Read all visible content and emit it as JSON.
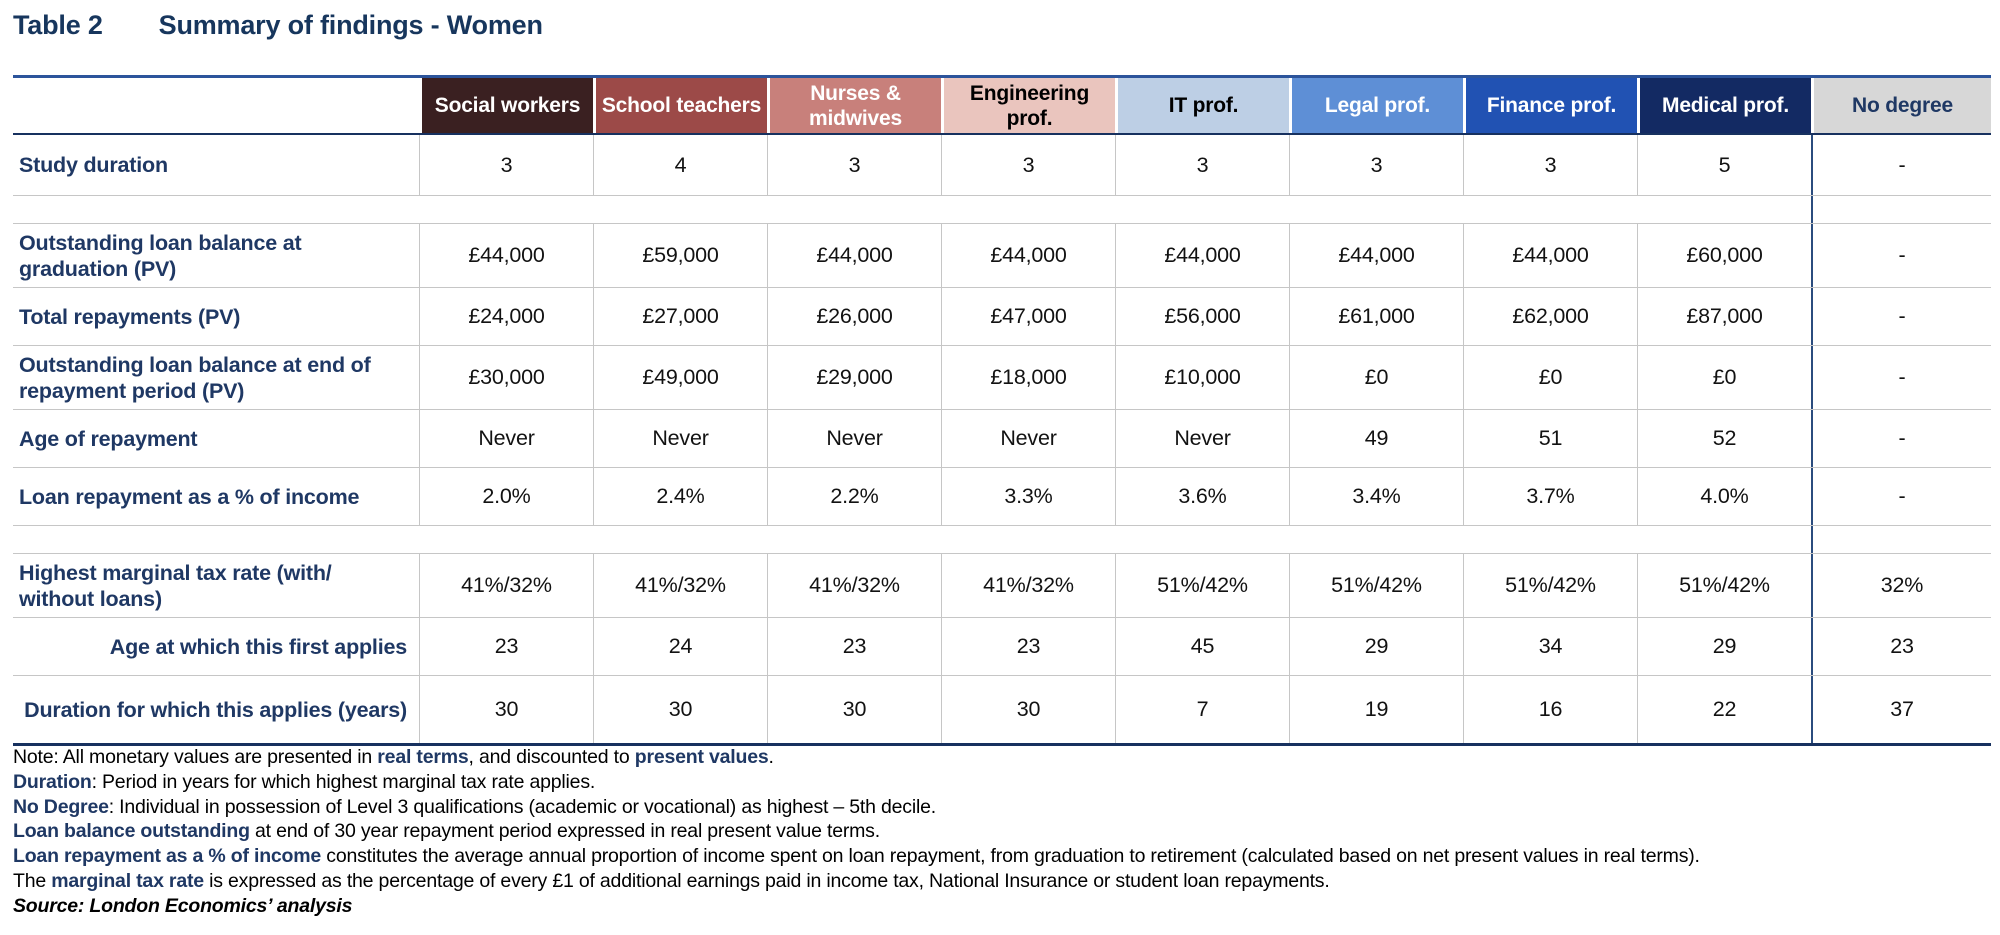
{
  "title": {
    "label": "Table 2",
    "heading": "Summary of findings - Women"
  },
  "colors": {
    "navy_text": "#1F3864",
    "title_navy": "#17365D",
    "top_border": "#2C549B",
    "bottom_border": "#17315F",
    "gridline_gray": "#C6C6C6",
    "nodegree_divider": "#2B4C7E"
  },
  "table": {
    "columns": [
      {
        "label": "Social workers",
        "bg": "#3A2021",
        "fg": "#FFFFFF"
      },
      {
        "label": "School teachers",
        "bg": "#9C4A48",
        "fg": "#FFFFFF"
      },
      {
        "label": "Nurses & midwives",
        "bg": "#C8807B",
        "fg": "#FFFFFF"
      },
      {
        "label": "Engineering prof.",
        "bg": "#EAC5BE",
        "fg": "#000000"
      },
      {
        "label": "IT prof.",
        "bg": "#BDCFE5",
        "fg": "#000000"
      },
      {
        "label": "Legal prof.",
        "bg": "#5E8FD6",
        "fg": "#FFFFFF"
      },
      {
        "label": "Finance prof.",
        "bg": "#2152B3",
        "fg": "#FFFFFF"
      },
      {
        "label": "Medical prof.",
        "bg": "#132A63",
        "fg": "#FFFFFF"
      },
      {
        "label": "No degree",
        "bg": "#D7D7D7",
        "fg": "#1F3864"
      }
    ],
    "rows": [
      {
        "type": "data",
        "label": "Study duration",
        "align": "left",
        "values": [
          "3",
          "4",
          "3",
          "3",
          "3",
          "3",
          "3",
          "5",
          "-"
        ]
      },
      {
        "type": "spacer"
      },
      {
        "type": "data",
        "label": "Outstanding loan balance at graduation (PV)",
        "align": "left",
        "values": [
          "£44,000",
          "£59,000",
          "£44,000",
          "£44,000",
          "£44,000",
          "£44,000",
          "£44,000",
          "£60,000",
          "-"
        ]
      },
      {
        "type": "data",
        "label": "Total repayments (PV)",
        "align": "left",
        "values": [
          "£24,000",
          "£27,000",
          "£26,000",
          "£47,000",
          "£56,000",
          "£61,000",
          "£62,000",
          "£87,000",
          "-"
        ]
      },
      {
        "type": "data",
        "label": "Outstanding loan balance at end of repayment period (PV)",
        "align": "left",
        "values": [
          "£30,000",
          "£49,000",
          "£29,000",
          "£18,000",
          "£10,000",
          "£0",
          "£0",
          "£0",
          "-"
        ]
      },
      {
        "type": "data",
        "label": "Age of repayment",
        "align": "left",
        "values": [
          "Never",
          "Never",
          "Never",
          "Never",
          "Never",
          "49",
          "51",
          "52",
          "-"
        ]
      },
      {
        "type": "data",
        "label": "Loan repayment as a % of income",
        "align": "left",
        "values": [
          "2.0%",
          "2.4%",
          "2.2%",
          "3.3%",
          "3.6%",
          "3.4%",
          "3.7%",
          "4.0%",
          "-"
        ]
      },
      {
        "type": "spacer"
      },
      {
        "type": "data",
        "label": "Highest marginal tax rate (with/ without loans)",
        "align": "left",
        "values": [
          "41%/32%",
          "41%/32%",
          "41%/32%",
          "41%/32%",
          "51%/42%",
          "51%/42%",
          "51%/42%",
          "51%/42%",
          "32%"
        ]
      },
      {
        "type": "data",
        "label": "Age at which this first applies",
        "align": "right",
        "values": [
          "23",
          "24",
          "23",
          "23",
          "45",
          "29",
          "34",
          "29",
          "23"
        ]
      },
      {
        "type": "data",
        "label": "Duration for which this applies (years)",
        "align": "right",
        "values": [
          "30",
          "30",
          "30",
          "30",
          "7",
          "19",
          "16",
          "22",
          "37"
        ]
      }
    ]
  },
  "footnotes": [
    [
      {
        "t": "Note: All monetary values are presented in ",
        "s": "n"
      },
      {
        "t": "real terms",
        "s": "b"
      },
      {
        "t": ", and discounted to ",
        "s": "n"
      },
      {
        "t": "present values",
        "s": "b"
      },
      {
        "t": ".",
        "s": "n"
      }
    ],
    [
      {
        "t": "Duration",
        "s": "b"
      },
      {
        "t": ": Period in years for which highest marginal tax rate applies.",
        "s": "n"
      }
    ],
    [
      {
        "t": "No Degree",
        "s": "b"
      },
      {
        "t": ": Individual in possession of Level 3 qualifications (academic or vocational) as highest – 5th decile.",
        "s": "n"
      }
    ],
    [
      {
        "t": "Loan balance outstanding",
        "s": "b"
      },
      {
        "t": " at end of 30 year repayment period expressed in real present value terms.",
        "s": "n"
      }
    ],
    [
      {
        "t": "Loan repayment as a % of income",
        "s": "b"
      },
      {
        "t": " constitutes the average annual proportion of income spent on loan repayment, from graduation to retirement (calculated based on net present values in real terms).",
        "s": "n"
      }
    ],
    [
      {
        "t": "The ",
        "s": "n"
      },
      {
        "t": "marginal tax rate",
        "s": "b"
      },
      {
        "t": " is expressed as the percentage of every £1 of additional earnings paid in income tax, National Insurance or student loan repayments.",
        "s": "n"
      }
    ],
    [
      {
        "t": "Source: London Economics’ analysis",
        "s": "si"
      }
    ]
  ]
}
